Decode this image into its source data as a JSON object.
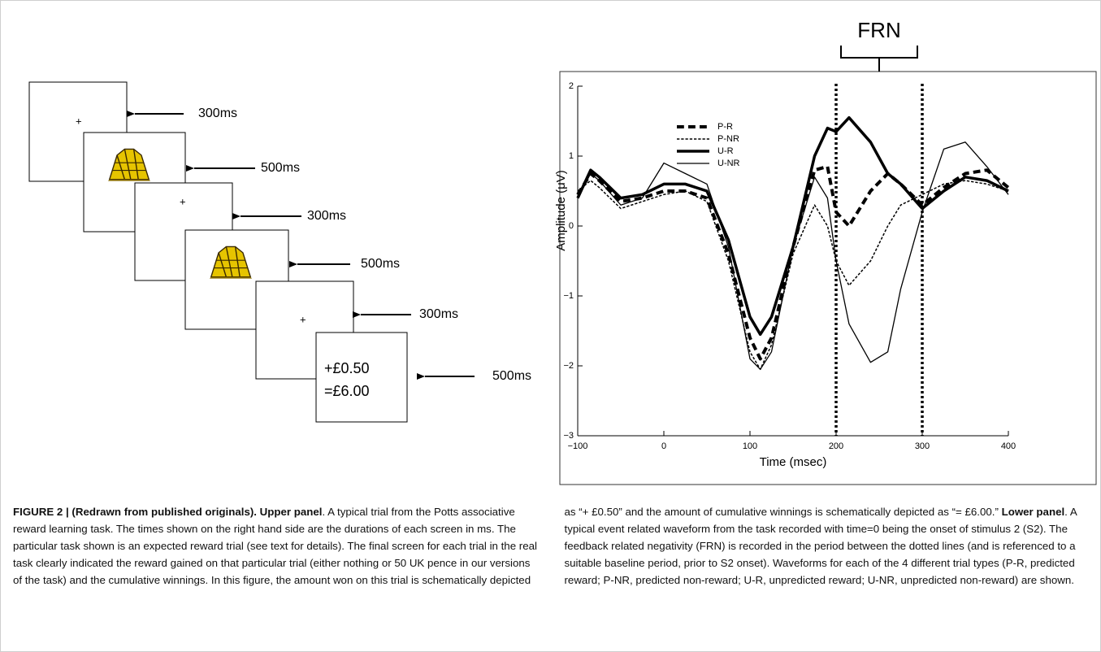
{
  "diagram": {
    "screens": [
      {
        "lines": [
          "+"
        ],
        "duration": "300ms"
      },
      {
        "duration": "500ms"
      },
      {
        "lines": [
          "+"
        ],
        "duration": "300ms"
      },
      {
        "duration": "500ms"
      },
      {
        "lines": [
          "+"
        ],
        "duration": "300ms"
      },
      {
        "lines": [
          "+£0.50",
          "=£6.00"
        ],
        "duration": "500ms"
      }
    ]
  },
  "chart_data": {
    "type": "line",
    "annotation": "FRN",
    "xlabel": "Time (msec)",
    "ylabel": "Amplitude (μV)",
    "x": [
      -100,
      -85,
      -75,
      -50,
      -25,
      0,
      25,
      50,
      75,
      100,
      112,
      125,
      150,
      175,
      190,
      200,
      215,
      240,
      260,
      275,
      300,
      325,
      350,
      375,
      400
    ],
    "series": [
      {
        "name": "P-R",
        "color": "#000000",
        "line_width": 4,
        "dashed": true,
        "values": [
          0.45,
          0.75,
          0.65,
          0.35,
          0.4,
          0.5,
          0.5,
          0.4,
          -0.4,
          -1.6,
          -1.9,
          -1.6,
          -0.3,
          0.8,
          0.85,
          0.2,
          0.0,
          0.5,
          0.75,
          0.6,
          0.3,
          0.55,
          0.75,
          0.8,
          0.55
        ]
      },
      {
        "name": "P-NR",
        "color": "#000000",
        "line_width": 1.5,
        "dashed": true,
        "values": [
          0.5,
          0.65,
          0.55,
          0.25,
          0.35,
          0.45,
          0.5,
          0.35,
          -0.5,
          -1.8,
          -2.05,
          -1.7,
          -0.4,
          0.3,
          0.0,
          -0.5,
          -0.85,
          -0.5,
          0.0,
          0.3,
          0.45,
          0.6,
          0.65,
          0.6,
          0.5
        ]
      },
      {
        "name": "U-R",
        "color": "#000000",
        "line_width": 3.5,
        "dashed": false,
        "values": [
          0.4,
          0.8,
          0.7,
          0.4,
          0.45,
          0.6,
          0.6,
          0.5,
          -0.2,
          -1.3,
          -1.55,
          -1.3,
          -0.3,
          1.0,
          1.4,
          1.35,
          1.55,
          1.2,
          0.75,
          0.6,
          0.25,
          0.5,
          0.7,
          0.65,
          0.5
        ]
      },
      {
        "name": "U-NR",
        "color": "#000000",
        "line_width": 1.3,
        "dashed": false,
        "values": [
          0.4,
          0.75,
          0.65,
          0.3,
          0.4,
          0.9,
          0.75,
          0.6,
          -0.3,
          -1.9,
          -2.05,
          -1.8,
          -0.3,
          0.7,
          0.4,
          -0.5,
          -1.4,
          -1.95,
          -1.8,
          -0.9,
          0.2,
          1.1,
          1.2,
          0.85,
          0.45
        ]
      }
    ],
    "vlines": [
      200,
      300
    ],
    "xlim": [
      -100,
      400
    ],
    "xticks": [
      {
        "value": -100,
        "label": "−100"
      },
      0,
      100,
      200,
      300,
      400
    ],
    "ylim": [
      -3,
      2
    ],
    "yticks": [
      {
        "value": -3,
        "label": "−3"
      },
      {
        "value": -2,
        "label": "−2"
      },
      {
        "value": -1,
        "label": "−1"
      },
      0,
      1,
      2
    ],
    "legend": "upper left"
  },
  "caption": [
    {
      "text": "FIGURE 2 | (Redrawn from published originals). Upper panel",
      "bold": true
    },
    {
      "text": ". A typical trial from the Potts associative reward learning task. The times shown on the right hand side are the durations of each screen in ms. The particular task shown is an expected reward trial (see text for details). The final screen for each trial in the real task clearly indicated the reward gained on that particular trial (either nothing or 50 UK pence in our versions of the task) and the cumulative winnings. In this figure, the amount won on this trial is schematically depicted as “+ £0.50” and the amount of cumulative winnings is schematically depicted as “= £6.00.” ",
      "bold": false
    },
    {
      "text": "Lower panel",
      "bold": true
    },
    {
      "text": ". A typical event related waveform from the task recorded with time=0 being the onset of stimulus 2 (S2). The feedback related negativity (FRN) is recorded in the period between the dotted lines (and is referenced to a suitable baseline period, prior to S2 onset). Waveforms for each of the 4 different trial types (P-R, predicted reward; P-NR, predicted non-reward; U-R, unpredicted reward; U-NR, unpredicted non-reward) are shown.",
      "bold": false
    }
  ]
}
